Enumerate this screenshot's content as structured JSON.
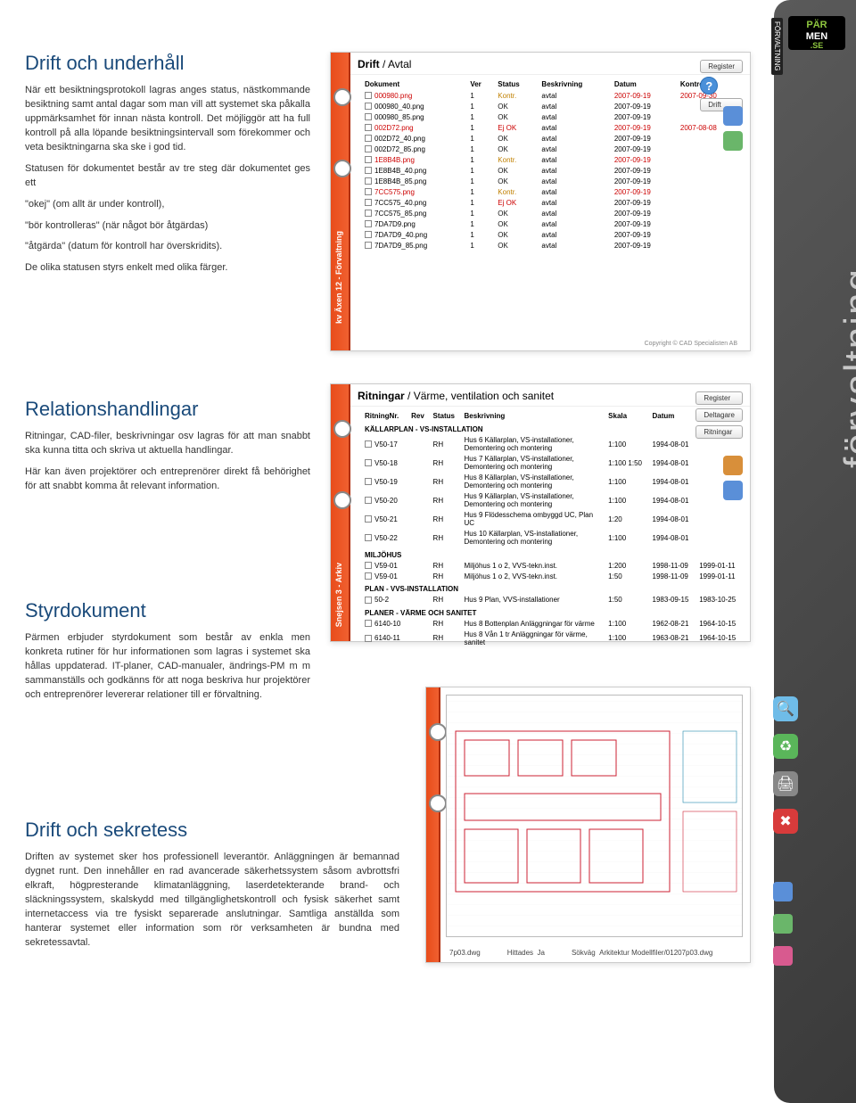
{
  "sidebar": {
    "vertical_label": "förvaltning",
    "logo1": "PÄR",
    "logo2": "MEN",
    "logo3": ".SE",
    "tag": "FÖRVALTNING",
    "bg": "#4a4a4a"
  },
  "sections": {
    "drift": {
      "title": "Drift och underhåll",
      "p1": "När ett besiktningsprotokoll lagras anges status, nästkommande besiktning samt antal dagar som man vill att systemet ska påkalla uppmärksamhet för innan nästa kontroll. Det möjliggör att ha full kontroll på alla löpande besiktningsintervall som förekommer och veta besiktningarna ska ske i god tid.",
      "p2": "Statusen för dokumentet består av tre steg där dokumentet ges ett",
      "p3": "\"okej\" (om allt är under kontroll),",
      "p4": "\"bör kontrolleras\" (när något bör åtgärdas)",
      "p5": "\"åtgärda\" (datum för kontroll har överskridits).",
      "p6": "De olika statusen styrs enkelt med olika färger."
    },
    "rel": {
      "title": "Relationshandlingar",
      "p1": "Ritningar, CAD-filer, beskrivningar osv lagras för att man snabbt ska kunna titta och skriva ut aktuella handlingar.",
      "p2": "Här kan även projektörer och entreprenörer direkt få behörighet för att snabbt komma åt relevant information."
    },
    "styr": {
      "title": "Styrdokument",
      "p1": "Pärmen erbjuder styrdokument som består av enkla men konkreta rutiner för hur informationen som lagras i systemet ska hållas uppdaterad. IT-planer, CAD-manualer, ändrings-PM m m sammanställs och godkänns för att noga beskriva hur projektörer och entreprenörer levererar relationer till er förvaltning."
    },
    "sek": {
      "title": "Drift och sekretess",
      "p1": "Driften av systemet sker hos professionell leverantör. Anläggningen är bemannad dygnet runt. Den innehåller en rad avancerade säkerhetssystem såsom avbrottsfri elkraft, högpresterande klimatanläggning, laserdetekterande brand- och släckningssystem, skalskydd med tillgänglighetskontroll och fysisk säkerhet samt internetaccess via tre fysiskt separerade anslutningar. Samtliga anställda som hanterar systemet eller information som rör verksamheten är bundna med sekretessavtal."
    }
  },
  "shot1": {
    "title": "Drift",
    "title_sep": " / ",
    "title2": "Avtal",
    "spine": "kv Äxen 12 - Förvaltning",
    "btn_register": "Register",
    "btn_drift": "Drift",
    "headers": [
      "Dokument",
      "Ver",
      "Status",
      "Beskrivning",
      "Datum",
      "Kontroll"
    ],
    "rows": [
      {
        "doc": "000980.png",
        "ver": "1",
        "st": "Kontr.",
        "cls": "warn",
        "be": "avtal",
        "d": "2007-09-19",
        "k": "2007-09-30",
        "dcls": "dt-warn"
      },
      {
        "doc": "000980_40.png",
        "ver": "1",
        "st": "OK",
        "cls": "ok",
        "be": "avtal",
        "d": "2007-09-19",
        "k": ""
      },
      {
        "doc": "000980_85.png",
        "ver": "1",
        "st": "OK",
        "cls": "ok",
        "be": "avtal",
        "d": "2007-09-19",
        "k": ""
      },
      {
        "doc": "002D72.png",
        "ver": "1",
        "st": "Ej OK",
        "cls": "err",
        "be": "avtal",
        "d": "2007-09-19",
        "k": "2007-08-08",
        "dcls": "dt-warn"
      },
      {
        "doc": "002D72_40.png",
        "ver": "1",
        "st": "OK",
        "cls": "ok",
        "be": "avtal",
        "d": "2007-09-19",
        "k": ""
      },
      {
        "doc": "002D72_85.png",
        "ver": "1",
        "st": "OK",
        "cls": "ok",
        "be": "avtal",
        "d": "2007-09-19",
        "k": ""
      },
      {
        "doc": "1E8B4B.png",
        "ver": "1",
        "st": "Kontr.",
        "cls": "warn",
        "be": "avtal",
        "d": "2007-09-19",
        "k": "",
        "dcls": "dt-warn"
      },
      {
        "doc": "1E8B4B_40.png",
        "ver": "1",
        "st": "OK",
        "cls": "ok",
        "be": "avtal",
        "d": "2007-09-19",
        "k": ""
      },
      {
        "doc": "1E8B4B_85.png",
        "ver": "1",
        "st": "OK",
        "cls": "ok",
        "be": "avtal",
        "d": "2007-09-19",
        "k": ""
      },
      {
        "doc": "7CC575.png",
        "ver": "1",
        "st": "Kontr.",
        "cls": "warn",
        "be": "avtal",
        "d": "2007-09-19",
        "k": "",
        "dcls": "dt-warn"
      },
      {
        "doc": "7CC575_40.png",
        "ver": "1",
        "st": "Ej OK",
        "cls": "err",
        "be": "avtal",
        "d": "2007-09-19",
        "k": ""
      },
      {
        "doc": "7CC575_85.png",
        "ver": "1",
        "st": "OK",
        "cls": "ok",
        "be": "avtal",
        "d": "2007-09-19",
        "k": ""
      },
      {
        "doc": "7DA7D9.png",
        "ver": "1",
        "st": "OK",
        "cls": "ok",
        "be": "avtal",
        "d": "2007-09-19",
        "k": ""
      },
      {
        "doc": "7DA7D9_40.png",
        "ver": "1",
        "st": "OK",
        "cls": "ok",
        "be": "avtal",
        "d": "2007-09-19",
        "k": ""
      },
      {
        "doc": "7DA7D9_85.png",
        "ver": "1",
        "st": "OK",
        "cls": "ok",
        "be": "avtal",
        "d": "2007-09-19",
        "k": ""
      }
    ],
    "copyright": "Copyright © CAD Specialisten AB"
  },
  "shot2": {
    "title": "Ritningar",
    "title_sep": " / ",
    "title2": "Värme, ventilation och sanitet",
    "spine": "Snejsen 3 - Arkiv",
    "btn_register": "Register",
    "btn_deltagare": "Deltagare",
    "btn_ritningar": "Ritningar",
    "headers": [
      "RitningNr.",
      "Rev",
      "Status",
      "Beskrivning",
      "Skala",
      "Datum",
      "Rev.datum"
    ],
    "groups": [
      {
        "head": "KÄLLARPLAN - VS-INSTALLATION",
        "rows": [
          {
            "n": "V50-17",
            "r": "",
            "s": "RH",
            "b": "Hus 6 Källarplan, VS-installationer, Demontering och montering",
            "sk": "1:100",
            "d": "1994-08-01",
            "rd": ""
          },
          {
            "n": "V50-18",
            "r": "",
            "s": "RH",
            "b": "Hus 7 Källarplan, VS-installationer, Demontering och montering",
            "sk": "1:100 1:50",
            "d": "1994-08-01",
            "rd": ""
          },
          {
            "n": "V50-19",
            "r": "",
            "s": "RH",
            "b": "Hus 8 Källarplan, VS-installationer, Demontering och montering",
            "sk": "1:100",
            "d": "1994-08-01",
            "rd": ""
          },
          {
            "n": "V50-20",
            "r": "",
            "s": "RH",
            "b": "Hus 9 Källarplan, VS-installationer, Demontering och montering",
            "sk": "1:100",
            "d": "1994-08-01",
            "rd": ""
          },
          {
            "n": "V50-21",
            "r": "",
            "s": "RH",
            "b": "Hus 9 Flödesschema ombyggd UC, Plan UC",
            "sk": "1:20",
            "d": "1994-08-01",
            "rd": ""
          },
          {
            "n": "V50-22",
            "r": "",
            "s": "RH",
            "b": "Hus 10 Källarplan, VS-installationer, Demontering och montering",
            "sk": "1:100",
            "d": "1994-08-01",
            "rd": ""
          }
        ]
      },
      {
        "head": "MILJÖHUS",
        "rows": [
          {
            "n": "V59-01",
            "r": "",
            "s": "RH",
            "b": "Miljöhus 1 o 2, VVS-tekn.inst.",
            "sk": "1:200",
            "d": "1998-11-09",
            "rd": "1999-01-11"
          },
          {
            "n": "V59-01",
            "r": "",
            "s": "RH",
            "b": "Miljöhus 1 o 2, VVS-tekn.inst.",
            "sk": "1:50",
            "d": "1998-11-09",
            "rd": "1999-01-11"
          }
        ]
      },
      {
        "head": "PLAN - VVS-INSTALLATION",
        "rows": [
          {
            "n": "50-2",
            "r": "",
            "s": "RH",
            "b": "Hus 9 Plan, VVS-installationer",
            "sk": "1:50",
            "d": "1983-09-15",
            "rd": "1983-10-25"
          }
        ]
      },
      {
        "head": "PLANER - VÄRME OCH SANITET",
        "rows": [
          {
            "n": "6140-10",
            "r": "",
            "s": "RH",
            "b": "Hus 8 Bottenplan Anläggningar för värme",
            "sk": "1:100",
            "d": "1962-08-21",
            "rd": "1964-10-15"
          },
          {
            "n": "6140-11",
            "r": "",
            "s": "RH",
            "b": "Hus 8 Vån 1 tr Anläggningar för värme, sanitet",
            "sk": "1:100",
            "d": "1963-08-21",
            "rd": "1964-10-15"
          }
        ]
      }
    ]
  },
  "shot3": {
    "footer": {
      "l1": "7p03.dwg",
      "l2": "Hittades",
      "l3": "Ja",
      "l4": "Sökväg",
      "l5": "Arkitektur Modellfiler/01207p03.dwg"
    },
    "tool_colors": {
      "zoom": "#6fbce8",
      "recycle": "#5ab65a",
      "print": "#888",
      "close": "#d83b3b"
    }
  },
  "colors": {
    "heading": "#1a4a7a",
    "body": "#333333",
    "spine": "#e84c1a"
  }
}
